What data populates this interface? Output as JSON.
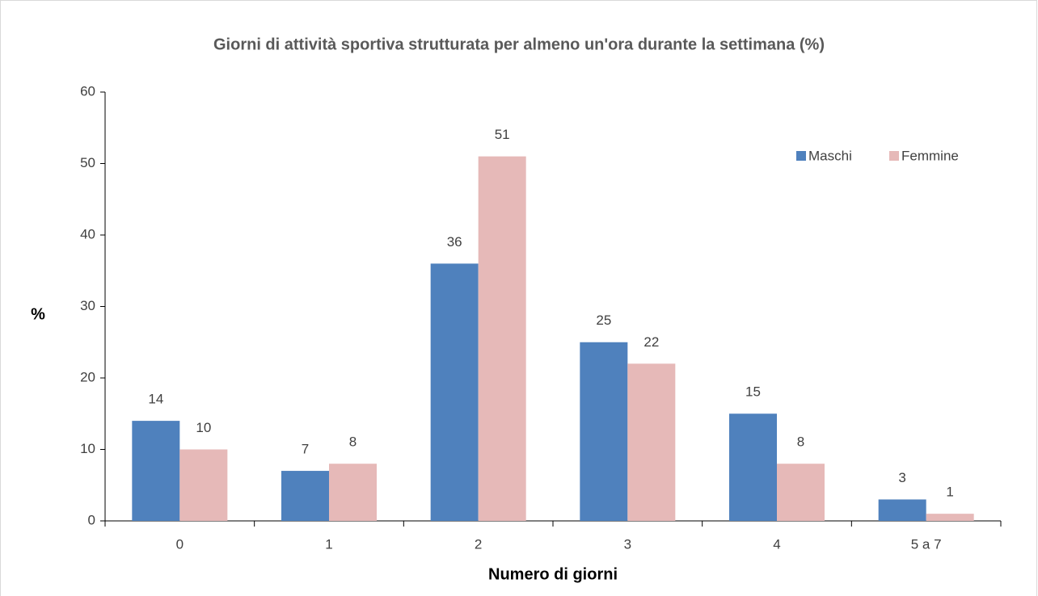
{
  "chart_data": {
    "type": "bar",
    "title": "Giorni di attività sportiva strutturata per almeno un'ora durante la settimana (%)",
    "y_label": "%",
    "x_label": "Numero di giorni",
    "categories": [
      "0",
      "1",
      "2",
      "3",
      "4",
      "5 a 7"
    ],
    "series": [
      {
        "name": "Maschi",
        "color": "#4f81bd",
        "values": [
          14,
          7,
          36,
          25,
          15,
          3
        ]
      },
      {
        "name": "Femmine",
        "color": "#e6b9b8",
        "values": [
          10,
          8,
          51,
          22,
          8,
          1
        ]
      }
    ],
    "ylim": [
      0,
      60
    ],
    "yticks": [
      0,
      10,
      20,
      30,
      40,
      50,
      60
    ],
    "grid": false,
    "legend": "upper right"
  }
}
